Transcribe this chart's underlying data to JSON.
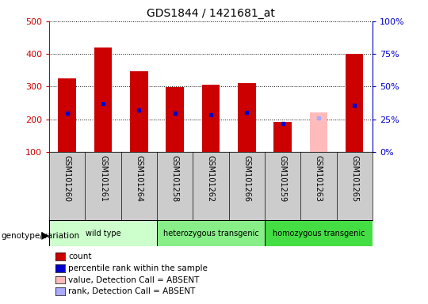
{
  "title": "GDS1844 / 1421681_at",
  "samples": [
    "GSM101260",
    "GSM101261",
    "GSM101264",
    "GSM101258",
    "GSM101262",
    "GSM101266",
    "GSM101259",
    "GSM101263",
    "GSM101265"
  ],
  "count_values": [
    325,
    420,
    347,
    298,
    305,
    310,
    192,
    null,
    400
  ],
  "absent_values": [
    null,
    null,
    null,
    null,
    null,
    null,
    null,
    220,
    null
  ],
  "percentile_rank": [
    218,
    248,
    228,
    218,
    215,
    222,
    188,
    null,
    242
  ],
  "absent_rank": [
    null,
    null,
    null,
    null,
    null,
    null,
    null,
    205,
    null
  ],
  "ylim": [
    100,
    500
  ],
  "yticks": [
    100,
    200,
    300,
    400,
    500
  ],
  "bar_width": 0.5,
  "groups": [
    {
      "label": "wild type",
      "indices": [
        0,
        1,
        2
      ],
      "color": "#ccffcc"
    },
    {
      "label": "heterozygous transgenic",
      "indices": [
        3,
        4,
        5
      ],
      "color": "#88ee88"
    },
    {
      "label": "homozygous transgenic",
      "indices": [
        6,
        7,
        8
      ],
      "color": "#44dd44"
    }
  ],
  "count_color": "#cc0000",
  "absent_bar_color": "#ffbbbb",
  "rank_color": "#0000cc",
  "absent_rank_color": "#aaaaff",
  "label_area_color": "#cccccc",
  "grid_color": "#000000",
  "legend_items": [
    {
      "label": "count",
      "color": "#cc0000"
    },
    {
      "label": "percentile rank within the sample",
      "color": "#0000cc"
    },
    {
      "label": "value, Detection Call = ABSENT",
      "color": "#ffbbbb"
    },
    {
      "label": "rank, Detection Call = ABSENT",
      "color": "#aaaaff"
    }
  ]
}
